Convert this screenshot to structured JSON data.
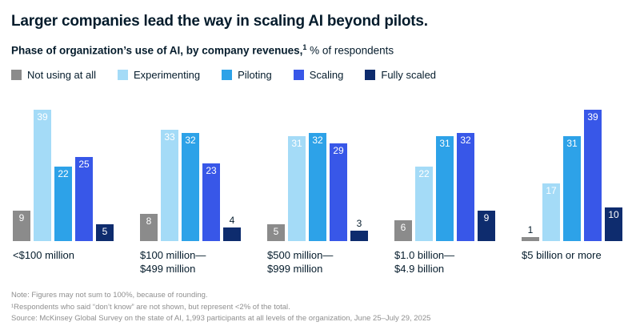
{
  "title": "Larger companies lead the way in scaling AI beyond pilots.",
  "subtitle": {
    "bold": "Phase of organization’s use of AI, by company revenues,",
    "sup": "1",
    "rest": " % of respondents"
  },
  "notes": [
    "Note: Figures may not sum to 100%, because of rounding.",
    "¹Respondents who said “don’t know” are not shown, but represent <2% of the total.",
    "Source: McKinsey Global Survey on the state of AI, 1,993 participants at all levels of the organization, June 25–July 29, 2025"
  ],
  "chart_data": {
    "type": "bar",
    "title": "Phase of organization’s use of AI, by company revenues, % of respondents",
    "unit": "% of respondents",
    "legend_position": "top",
    "grid": false,
    "value_labels": true,
    "ylim": [
      0,
      40
    ],
    "categories": [
      "<$100 million",
      "$100 million—\n$499 million",
      "$500 million—\n$999 million",
      "$1.0 billion—\n$4.9 billion",
      "$5 billion or more"
    ],
    "series": [
      {
        "name": "Not using at all",
        "color": "#8b8b8b",
        "values": [
          9,
          8,
          5,
          6,
          1
        ]
      },
      {
        "name": "Experimenting",
        "color": "#a4dbf7",
        "values": [
          39,
          33,
          31,
          22,
          17
        ]
      },
      {
        "name": "Piloting",
        "color": "#2da2e8",
        "values": [
          22,
          32,
          32,
          31,
          31
        ]
      },
      {
        "name": "Scaling",
        "color": "#3857e8",
        "values": [
          25,
          23,
          29,
          32,
          39
        ]
      },
      {
        "name": "Fully scaled",
        "color": "#0e2c6e",
        "values": [
          5,
          4,
          3,
          9,
          10
        ]
      }
    ]
  }
}
